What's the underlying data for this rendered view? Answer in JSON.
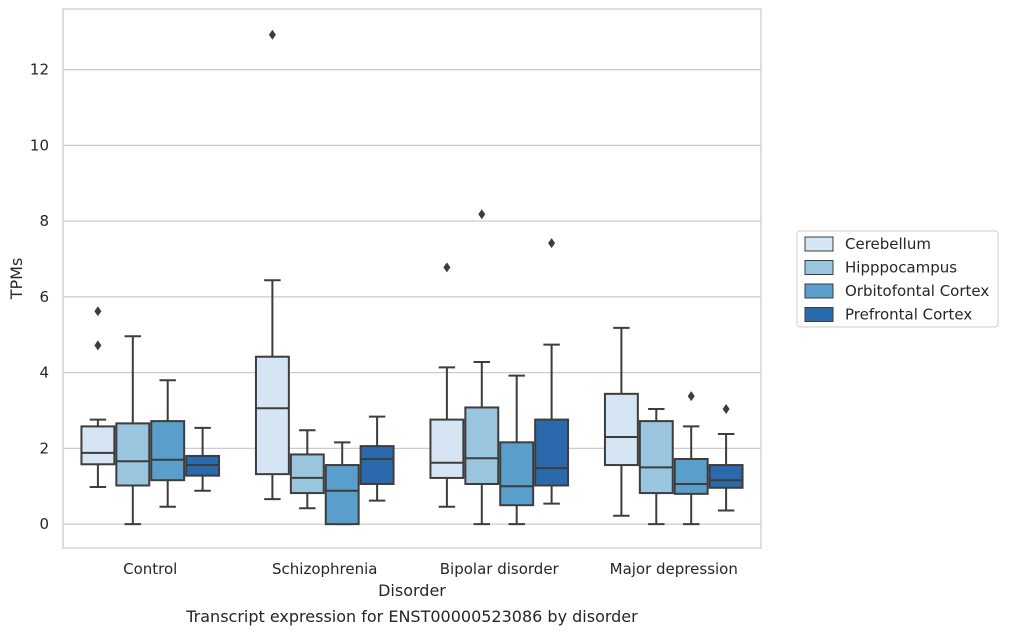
{
  "chart_data": {
    "type": "box",
    "title": "",
    "caption": "Transcript expression for ENST00000523086 by disorder",
    "xlabel": "Disorder",
    "ylabel": "TPMs",
    "ylim": [
      -0.63,
      13.6
    ],
    "yticks": [
      0,
      2,
      4,
      6,
      8,
      10,
      12
    ],
    "grid": "horizontal",
    "legend_position": "right",
    "categories": [
      "Control",
      "Schizophrenia",
      "Bipolar disorder",
      "Major depression"
    ],
    "series": [
      {
        "name": "Cerebellum",
        "color": "#d6e5f3",
        "boxes": [
          {
            "whisker_low": 0.98,
            "q1": 1.58,
            "median": 1.88,
            "q3": 2.58,
            "whisker_high": 2.76,
            "outliers": [
              4.72,
              5.62
            ]
          },
          {
            "whisker_low": 0.66,
            "q1": 1.32,
            "median": 3.06,
            "q3": 4.42,
            "whisker_high": 6.44,
            "outliers": [
              12.92
            ]
          },
          {
            "whisker_low": 0.46,
            "q1": 1.22,
            "median": 1.62,
            "q3": 2.76,
            "whisker_high": 4.14,
            "outliers": [
              6.78
            ]
          },
          {
            "whisker_low": 0.22,
            "q1": 1.56,
            "median": 2.3,
            "q3": 3.44,
            "whisker_high": 5.18,
            "outliers": []
          }
        ]
      },
      {
        "name": "Hipppocampus",
        "color": "#9ac5de",
        "boxes": [
          {
            "whisker_low": 0.0,
            "q1": 1.02,
            "median": 1.66,
            "q3": 2.66,
            "whisker_high": 4.96,
            "outliers": []
          },
          {
            "whisker_low": 0.42,
            "q1": 0.82,
            "median": 1.22,
            "q3": 1.84,
            "whisker_high": 2.48,
            "outliers": []
          },
          {
            "whisker_low": 0.0,
            "q1": 1.06,
            "median": 1.74,
            "q3": 3.08,
            "whisker_high": 4.28,
            "outliers": [
              8.18
            ]
          },
          {
            "whisker_low": 0.0,
            "q1": 0.82,
            "median": 1.5,
            "q3": 2.72,
            "whisker_high": 3.04,
            "outliers": []
          }
        ]
      },
      {
        "name": "Orbitofontal Cortex",
        "color": "#5a9fcb",
        "boxes": [
          {
            "whisker_low": 0.46,
            "q1": 1.16,
            "median": 1.7,
            "q3": 2.72,
            "whisker_high": 3.8,
            "outliers": []
          },
          {
            "whisker_low": 0.0,
            "q1": 0.0,
            "median": 0.88,
            "q3": 1.56,
            "whisker_high": 2.16,
            "outliers": []
          },
          {
            "whisker_low": 0.0,
            "q1": 0.5,
            "median": 1.0,
            "q3": 2.16,
            "whisker_high": 3.92,
            "outliers": []
          },
          {
            "whisker_low": 0.0,
            "q1": 0.8,
            "median": 1.06,
            "q3": 1.72,
            "whisker_high": 2.58,
            "outliers": [
              3.38
            ]
          }
        ]
      },
      {
        "name": "Prefrontal Cortex",
        "color": "#2a69ab",
        "boxes": [
          {
            "whisker_low": 0.88,
            "q1": 1.28,
            "median": 1.56,
            "q3": 1.8,
            "whisker_high": 2.54,
            "outliers": []
          },
          {
            "whisker_low": 0.62,
            "q1": 1.06,
            "median": 1.72,
            "q3": 2.06,
            "whisker_high": 2.84,
            "outliers": []
          },
          {
            "whisker_low": 0.54,
            "q1": 1.02,
            "median": 1.48,
            "q3": 2.76,
            "whisker_high": 4.74,
            "outliers": [
              7.42
            ]
          },
          {
            "whisker_low": 0.36,
            "q1": 0.96,
            "median": 1.16,
            "q3": 1.56,
            "whisker_high": 2.38,
            "outliers": [
              3.04
            ]
          }
        ]
      }
    ]
  }
}
